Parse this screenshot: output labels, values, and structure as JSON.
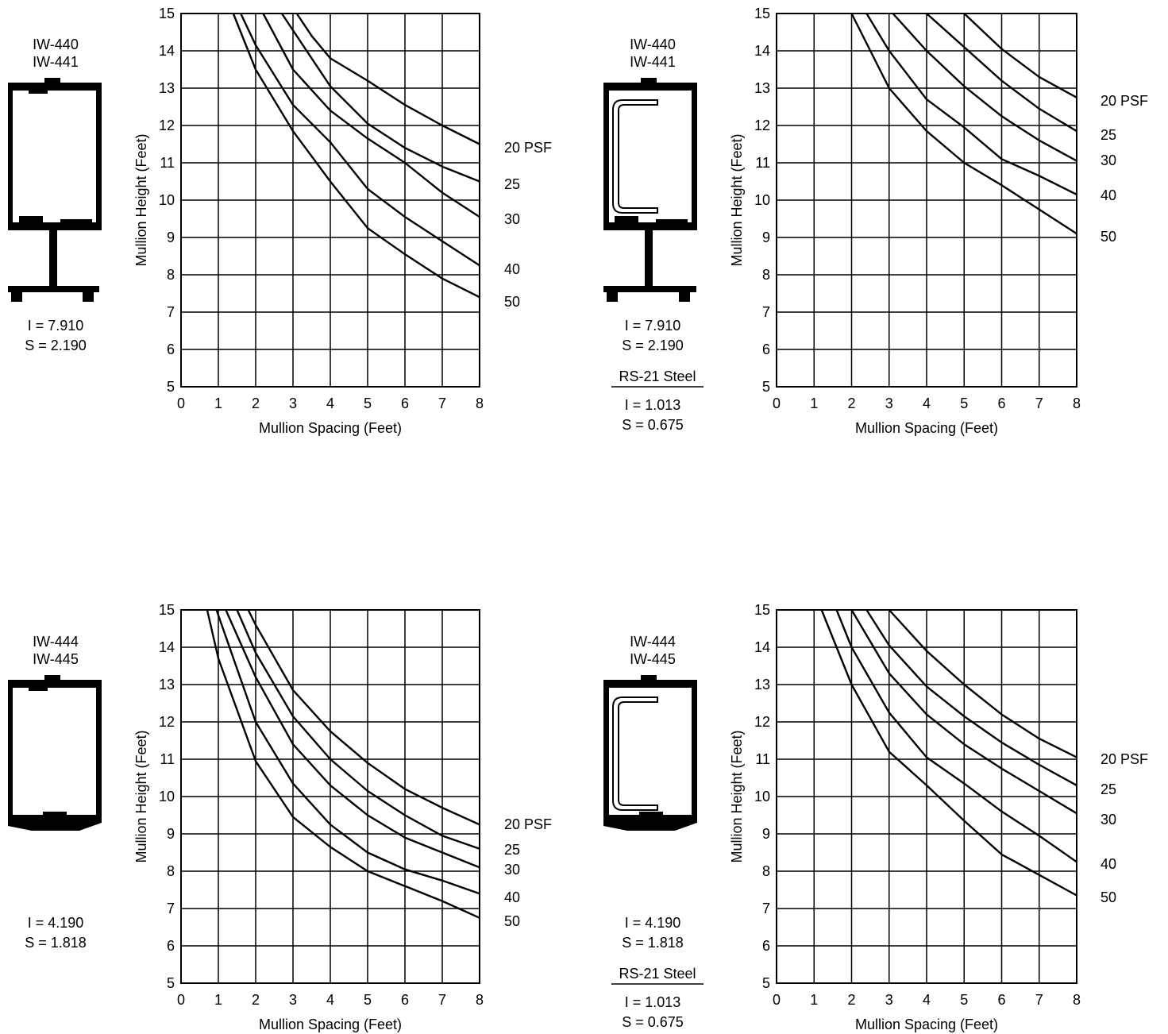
{
  "chart_data": [
    {
      "type": "line",
      "profile": {
        "models": [
          "IW-440",
          "IW-441"
        ],
        "I": "I = 7.910",
        "S": "S = 2.190"
      },
      "steel": null,
      "xlabel": "Mullion Spacing (Feet)",
      "ylabel": "Mullion Height (Feet)",
      "xlim": [
        0,
        8
      ],
      "ylim": [
        5,
        15
      ],
      "xticks": [
        "0",
        "1",
        "2",
        "3",
        "4",
        "5",
        "6",
        "7",
        "8"
      ],
      "yticks": [
        "5",
        "6",
        "7",
        "8",
        "9",
        "10",
        "11",
        "12",
        "13",
        "14",
        "15"
      ],
      "grid": true,
      "series": [
        {
          "name": "20 PSF",
          "points": [
            [
              3.1,
              15
            ],
            [
              3.5,
              14.4
            ],
            [
              4,
              13.8
            ],
            [
              5,
              13.2
            ],
            [
              6,
              12.55
            ],
            [
              7,
              12.0
            ],
            [
              8,
              11.5
            ]
          ]
        },
        {
          "name": "25",
          "points": [
            [
              2.7,
              15
            ],
            [
              3.5,
              13.8
            ],
            [
              4,
              13.05
            ],
            [
              5,
              12.05
            ],
            [
              6,
              11.4
            ],
            [
              7,
              10.9
            ],
            [
              8,
              10.5
            ]
          ]
        },
        {
          "name": "30",
          "points": [
            [
              2.2,
              15
            ],
            [
              3,
              13.5
            ],
            [
              4,
              12.4
            ],
            [
              5,
              11.65
            ],
            [
              6,
              11.0
            ],
            [
              7,
              10.2
            ],
            [
              8,
              9.55
            ]
          ]
        },
        {
          "name": "40",
          "points": [
            [
              1.6,
              15
            ],
            [
              2,
              14.15
            ],
            [
              3,
              12.55
            ],
            [
              4,
              11.55
            ],
            [
              5,
              10.3
            ],
            [
              6,
              9.55
            ],
            [
              7,
              8.9
            ],
            [
              8,
              8.25
            ]
          ]
        },
        {
          "name": "50",
          "points": [
            [
              1.4,
              15
            ],
            [
              2,
              13.5
            ],
            [
              3,
              11.85
            ],
            [
              4,
              10.5
            ],
            [
              5,
              9.25
            ],
            [
              6,
              8.55
            ],
            [
              7,
              7.9
            ],
            [
              8,
              7.4
            ]
          ]
        }
      ]
    },
    {
      "type": "line",
      "profile": {
        "models": [
          "IW-440",
          "IW-441"
        ],
        "I": "I = 7.910",
        "S": "S = 2.190"
      },
      "steel": {
        "label": "RS-21 Steel",
        "I": "I = 1.013",
        "S": "S = 0.675"
      },
      "xlabel": "Mullion Spacing (Feet)",
      "ylabel": "Mullion Height (Feet)",
      "xlim": [
        0,
        8
      ],
      "ylim": [
        5,
        15
      ],
      "xticks": [
        "0",
        "1",
        "2",
        "3",
        "4",
        "5",
        "6",
        "7",
        "8"
      ],
      "yticks": [
        "5",
        "6",
        "7",
        "8",
        "9",
        "10",
        "11",
        "12",
        "13",
        "14",
        "15"
      ],
      "grid": true,
      "series": [
        {
          "name": "20 PSF",
          "points": [
            [
              5.0,
              15
            ],
            [
              6,
              14.05
            ],
            [
              7,
              13.3
            ],
            [
              8,
              12.75
            ]
          ]
        },
        {
          "name": "25",
          "points": [
            [
              4.0,
              15
            ],
            [
              5,
              14.1
            ],
            [
              6,
              13.2
            ],
            [
              7,
              12.45
            ],
            [
              8,
              11.85
            ]
          ]
        },
        {
          "name": "30",
          "points": [
            [
              3.1,
              15
            ],
            [
              4,
              14.0
            ],
            [
              5,
              13.05
            ],
            [
              6,
              12.25
            ],
            [
              7,
              11.6
            ],
            [
              8,
              11.05
            ]
          ]
        },
        {
          "name": "40",
          "points": [
            [
              2.4,
              15
            ],
            [
              3,
              14.0
            ],
            [
              4,
              12.7
            ],
            [
              5,
              11.95
            ],
            [
              6,
              11.1
            ],
            [
              7,
              10.65
            ],
            [
              8,
              10.15
            ]
          ]
        },
        {
          "name": "50",
          "points": [
            [
              2.0,
              15
            ],
            [
              3,
              13.0
            ],
            [
              4,
              11.85
            ],
            [
              5,
              11.0
            ],
            [
              6,
              10.4
            ],
            [
              7,
              9.75
            ],
            [
              8,
              9.1
            ]
          ]
        }
      ]
    },
    {
      "type": "line",
      "profile": {
        "models": [
          "IW-444",
          "IW-445"
        ],
        "I": "I = 4.190",
        "S": "S = 1.818"
      },
      "steel": null,
      "xlabel": "Mullion Spacing (Feet)",
      "ylabel": "Mullion Height (Feet)",
      "xlim": [
        0,
        8
      ],
      "ylim": [
        5,
        15
      ],
      "xticks": [
        "0",
        "1",
        "2",
        "3",
        "4",
        "5",
        "6",
        "7",
        "8"
      ],
      "yticks": [
        "5",
        "6",
        "7",
        "8",
        "9",
        "10",
        "11",
        "12",
        "13",
        "14",
        "15"
      ],
      "grid": true,
      "series": [
        {
          "name": "20 PSF",
          "points": [
            [
              1.8,
              15
            ],
            [
              2,
              14.6
            ],
            [
              3,
              12.85
            ],
            [
              4,
              11.75
            ],
            [
              5,
              10.9
            ],
            [
              6,
              10.2
            ],
            [
              7,
              9.7
            ],
            [
              8,
              9.25
            ]
          ]
        },
        {
          "name": "25",
          "points": [
            [
              1.5,
              15
            ],
            [
              2,
              13.85
            ],
            [
              3,
              12.15
            ],
            [
              4,
              11.0
            ],
            [
              5,
              10.15
            ],
            [
              6,
              9.5
            ],
            [
              7,
              8.95
            ],
            [
              8,
              8.6
            ]
          ]
        },
        {
          "name": "30",
          "points": [
            [
              1.2,
              15
            ],
            [
              2,
              13.2
            ],
            [
              3,
              11.4
            ],
            [
              4,
              10.3
            ],
            [
              5,
              9.5
            ],
            [
              6,
              8.9
            ],
            [
              7,
              8.5
            ],
            [
              8,
              8.1
            ]
          ]
        },
        {
          "name": "40",
          "points": [
            [
              0.95,
              15
            ],
            [
              2,
              12.0
            ],
            [
              3,
              10.35
            ],
            [
              4,
              9.25
            ],
            [
              5,
              8.5
            ],
            [
              6,
              8.05
            ],
            [
              7,
              7.75
            ],
            [
              8,
              7.4
            ]
          ]
        },
        {
          "name": "50",
          "points": [
            [
              0.7,
              15
            ],
            [
              1,
              13.7
            ],
            [
              2,
              10.95
            ],
            [
              3,
              9.45
            ],
            [
              4,
              8.65
            ],
            [
              5,
              8.0
            ],
            [
              6,
              7.6
            ],
            [
              7,
              7.2
            ],
            [
              8,
              6.75
            ]
          ]
        }
      ]
    },
    {
      "type": "line",
      "profile": {
        "models": [
          "IW-444",
          "IW-445"
        ],
        "I": "I = 4.190",
        "S": "S = 1.818"
      },
      "steel": {
        "label": "RS-21 Steel",
        "I": "I = 1.013",
        "S": "S = 0.675"
      },
      "xlabel": "Mullion Spacing (Feet)",
      "ylabel": "Mullion Height (Feet)",
      "xlim": [
        0,
        8
      ],
      "ylim": [
        5,
        15
      ],
      "xticks": [
        "0",
        "1",
        "2",
        "3",
        "4",
        "5",
        "6",
        "7",
        "8"
      ],
      "yticks": [
        "5",
        "6",
        "7",
        "8",
        "9",
        "10",
        "11",
        "12",
        "13",
        "14",
        "15"
      ],
      "grid": true,
      "series": [
        {
          "name": "20 PSF",
          "points": [
            [
              3.0,
              15
            ],
            [
              4,
              13.9
            ],
            [
              5,
              13.0
            ],
            [
              6,
              12.2
            ],
            [
              7,
              11.55
            ],
            [
              8,
              11.05
            ]
          ]
        },
        {
          "name": "25",
          "points": [
            [
              2.4,
              15
            ],
            [
              3,
              14.05
            ],
            [
              4,
              12.95
            ],
            [
              5,
              12.15
            ],
            [
              6,
              11.45
            ],
            [
              7,
              10.85
            ],
            [
              8,
              10.3
            ]
          ]
        },
        {
          "name": "30",
          "points": [
            [
              2.0,
              15
            ],
            [
              3,
              13.3
            ],
            [
              4,
              12.2
            ],
            [
              5,
              11.4
            ],
            [
              6,
              10.75
            ],
            [
              7,
              10.15
            ],
            [
              8,
              9.55
            ]
          ]
        },
        {
          "name": "40",
          "points": [
            [
              1.6,
              15
            ],
            [
              2,
              14.0
            ],
            [
              3,
              12.25
            ],
            [
              4,
              11.05
            ],
            [
              5,
              10.35
            ],
            [
              6,
              9.6
            ],
            [
              7,
              8.95
            ],
            [
              8,
              8.25
            ]
          ]
        },
        {
          "name": "50",
          "points": [
            [
              1.2,
              15
            ],
            [
              2,
              13.0
            ],
            [
              3,
              11.2
            ],
            [
              4,
              10.3
            ],
            [
              5,
              9.35
            ],
            [
              6,
              8.45
            ],
            [
              7,
              7.9
            ],
            [
              8,
              7.35
            ]
          ]
        }
      ]
    }
  ]
}
